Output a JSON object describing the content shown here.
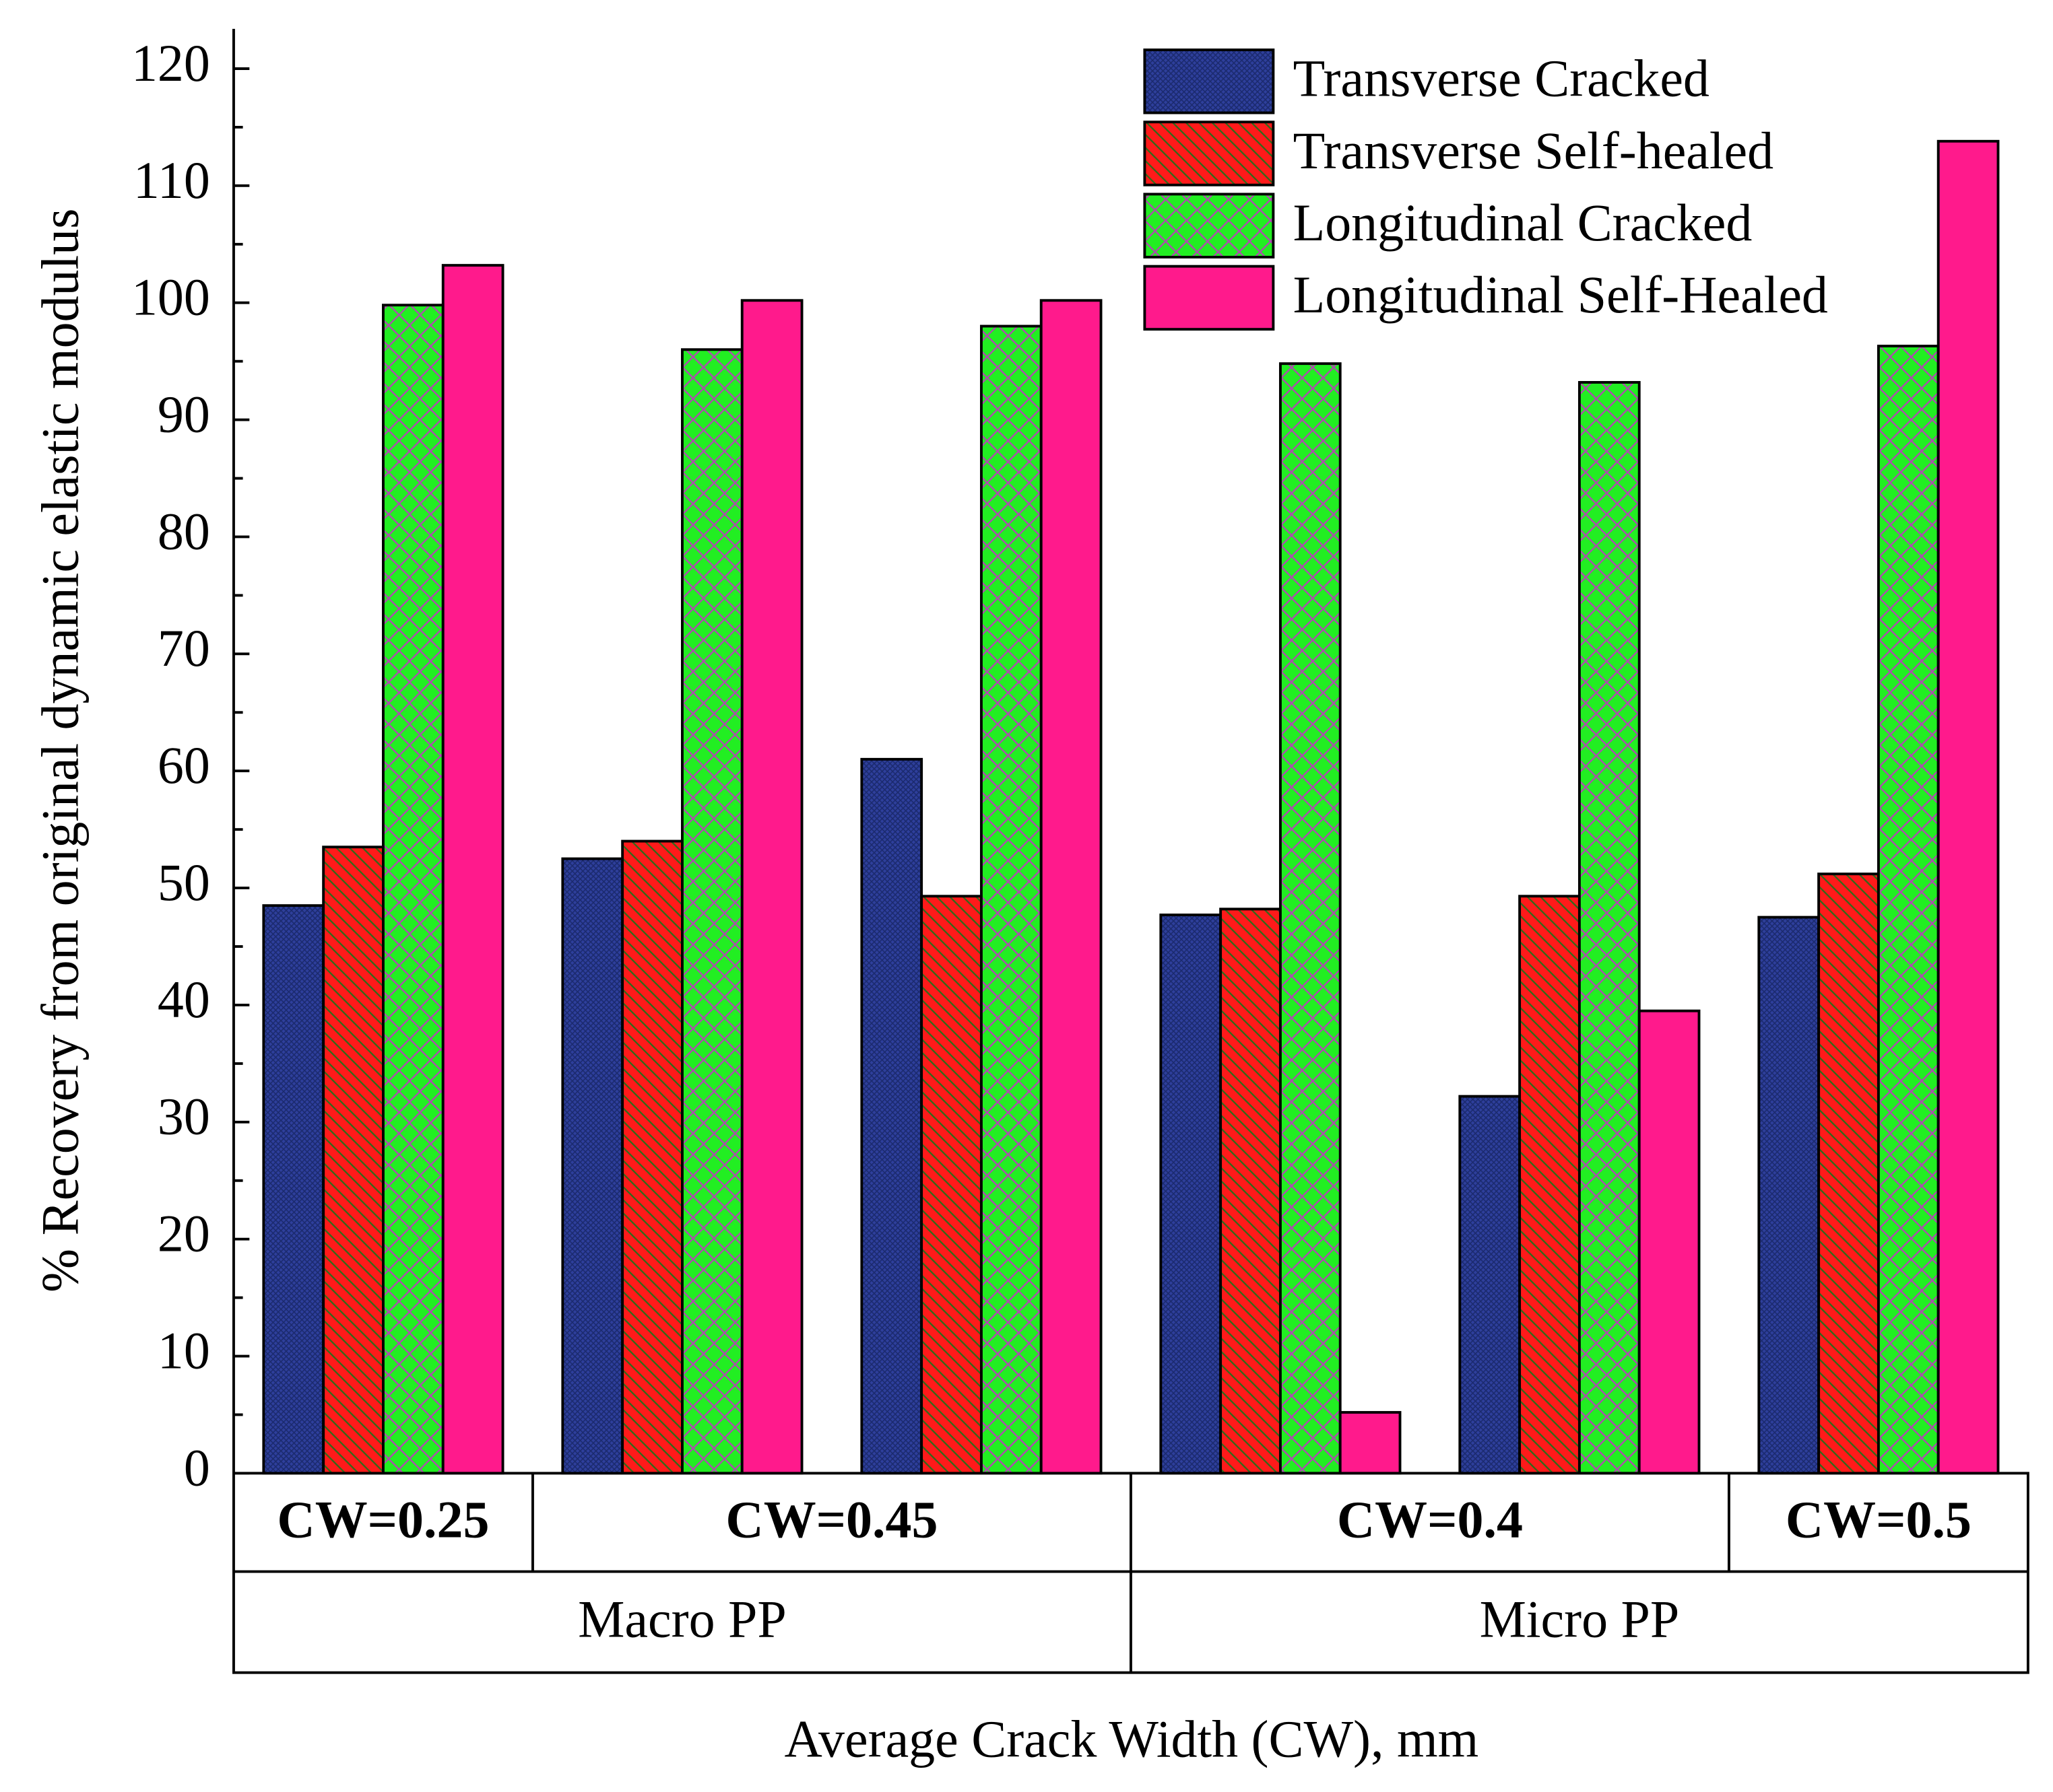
{
  "chart_data": {
    "type": "bar",
    "y_label": "% Recovery from original dynamic elastic modulus",
    "x_label": "Average Crack Width (CW), mm",
    "categories": [
      null,
      null,
      null,
      null,
      null,
      null
    ],
    "category_levels": [
      [
        {
          "label": "CW=0.25",
          "count": 1
        },
        {
          "label": "CW=0.45",
          "count": 2
        },
        {
          "label": "CW=0.4",
          "count": 2
        },
        {
          "label": "CW=0.5",
          "count": 1
        }
      ],
      [
        {
          "label": "Macro PP",
          "count": 3
        },
        {
          "label": "Micro PP",
          "count": 3
        }
      ]
    ],
    "series": [
      {
        "name": "Transverse Cracked",
        "color": "#2e3f9c",
        "hatch": "dots",
        "values": [
          48.5,
          52.5,
          61,
          47.7,
          32.2,
          47.5
        ]
      },
      {
        "name": "Transverse Self-healed",
        "color": "#ff1a1a",
        "hatch": "backslash",
        "values": [
          53.5,
          54,
          49.3,
          48.2,
          49.3,
          51.2
        ]
      },
      {
        "name": "Longitudinal Cracked",
        "color": "#22ee22",
        "hatch": "cross",
        "values": [
          99.8,
          96,
          98,
          94.8,
          93.2,
          96.3
        ]
      },
      {
        "name": "Longitudinal Self-Healed",
        "color": "#ff1a8c",
        "hatch": "none",
        "values": [
          103.2,
          100.2,
          100.2,
          5.2,
          39.5,
          113.8
        ]
      }
    ],
    "ylim": [
      0,
      123.4
    ],
    "yticks": [
      0,
      10,
      20,
      30,
      40,
      50,
      60,
      70,
      80,
      90,
      100,
      110,
      120
    ],
    "legend": "upper right"
  }
}
